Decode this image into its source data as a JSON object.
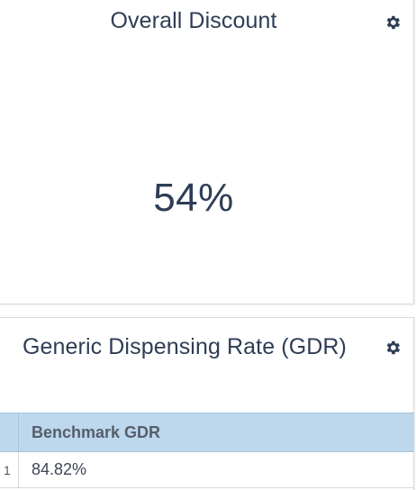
{
  "discount_card": {
    "title": "Overall Discount",
    "value": "54%",
    "settings_icon": "gear-icon"
  },
  "gdr_card": {
    "title": "Generic Dispensing Rate (GDR)",
    "settings_icon": "gear-icon",
    "table": {
      "columns": [
        "Benchmark GDR"
      ],
      "rows": [
        {
          "row_number": "1",
          "benchmark_gdr": "84.82%"
        }
      ]
    }
  },
  "colors": {
    "text": "#2e3d55",
    "table_header_bg": "#bdd7ec"
  }
}
